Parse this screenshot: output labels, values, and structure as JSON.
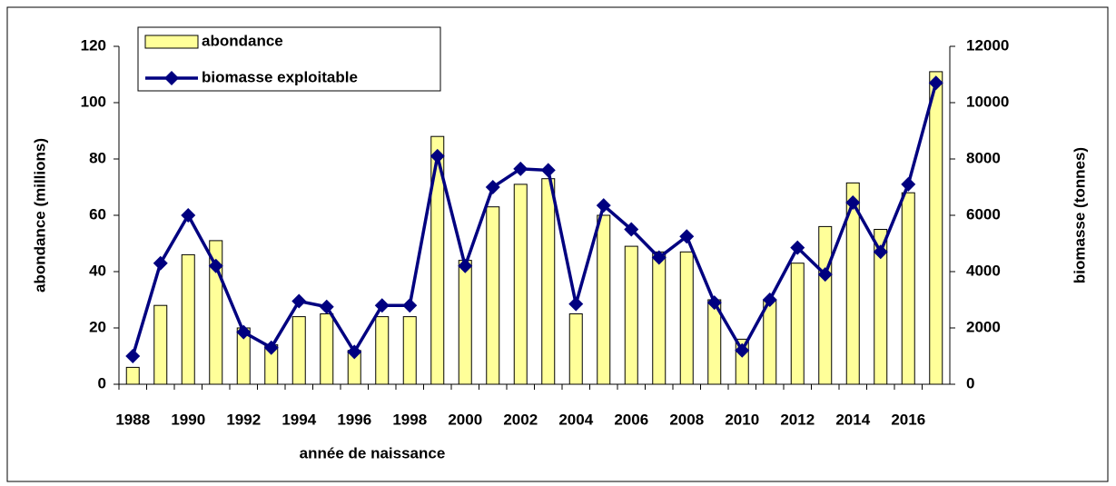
{
  "chart_data": {
    "type": "bar_line",
    "x_label": "année de naissance",
    "y_label": "abondance (millions)",
    "y2_label": "biomasse (tonnes)",
    "categories": [
      "1988",
      null,
      "1990",
      null,
      "1992",
      null,
      "1994",
      null,
      "1996",
      null,
      "1998",
      null,
      "2000",
      null,
      "2002",
      null,
      "2004",
      null,
      "2006",
      null,
      "2008",
      null,
      "2010",
      null,
      "2012",
      null,
      "2014",
      null,
      "2016",
      null
    ],
    "series": [
      {
        "name": "abondance",
        "type": "bar",
        "color": "#ffff99",
        "axis": "y",
        "values": [
          6,
          28,
          46,
          51,
          20,
          14,
          24,
          25,
          12,
          24,
          24,
          88,
          44,
          63,
          71,
          73,
          25,
          60,
          49,
          47,
          47,
          30,
          16,
          30,
          43,
          56,
          71.5,
          55,
          68,
          111
        ]
      },
      {
        "name": "biomasse exploitable",
        "type": "line",
        "color": "#000080",
        "axis": "y2",
        "values": [
          1000,
          4300,
          6000,
          4200,
          1850,
          1300,
          2950,
          2750,
          1150,
          2800,
          2800,
          8100,
          4200,
          7000,
          7650,
          7600,
          2850,
          6350,
          5500,
          4500,
          5250,
          2900,
          1200,
          3000,
          4850,
          3900,
          6450,
          4700,
          7100,
          10700
        ]
      }
    ],
    "ylim": [
      0,
      120
    ],
    "yticks": [
      0,
      20,
      40,
      60,
      80,
      100,
      120
    ],
    "y2lim": [
      0,
      12000
    ],
    "y2ticks": [
      0,
      2000,
      4000,
      6000,
      8000,
      10000,
      12000
    ],
    "legend": "top-left",
    "grid": false
  }
}
